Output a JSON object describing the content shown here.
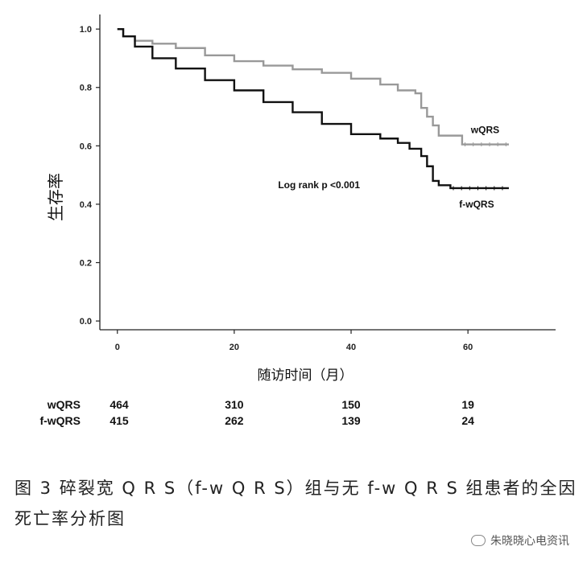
{
  "chart_data": {
    "type": "line",
    "subtype": "kaplan-meier",
    "xlabel": "随访时间（月）",
    "ylabel": "生存率",
    "xlim": [
      -3,
      75
    ],
    "ylim": [
      -0.03,
      1.05
    ],
    "x_ticks": [
      0,
      20,
      40,
      60
    ],
    "y_ticks": [
      0.0,
      0.2,
      0.4,
      0.6,
      0.8,
      1.0
    ],
    "y_tick_labels": [
      "0.0",
      "0.2",
      "0.4",
      "0.6",
      "0.8",
      "1.0"
    ],
    "grid": false,
    "annotation": "Log rank p <0.001",
    "series": [
      {
        "name": "wQRS",
        "color": "#999999",
        "points": [
          [
            0,
            1.0
          ],
          [
            1,
            0.975
          ],
          [
            3,
            0.96
          ],
          [
            6,
            0.95
          ],
          [
            10,
            0.935
          ],
          [
            15,
            0.91
          ],
          [
            20,
            0.89
          ],
          [
            25,
            0.875
          ],
          [
            30,
            0.862
          ],
          [
            35,
            0.85
          ],
          [
            40,
            0.83
          ],
          [
            45,
            0.81
          ],
          [
            48,
            0.79
          ],
          [
            51,
            0.78
          ],
          [
            52,
            0.73
          ],
          [
            53,
            0.7
          ],
          [
            54,
            0.67
          ],
          [
            55,
            0.635
          ],
          [
            58,
            0.635
          ],
          [
            59,
            0.605
          ],
          [
            67,
            0.605
          ]
        ]
      },
      {
        "name": "f-wQRS",
        "color": "#111111",
        "points": [
          [
            0,
            1.0
          ],
          [
            1,
            0.975
          ],
          [
            3,
            0.94
          ],
          [
            6,
            0.9
          ],
          [
            10,
            0.865
          ],
          [
            15,
            0.825
          ],
          [
            20,
            0.79
          ],
          [
            25,
            0.75
          ],
          [
            30,
            0.715
          ],
          [
            35,
            0.675
          ],
          [
            40,
            0.64
          ],
          [
            45,
            0.625
          ],
          [
            48,
            0.61
          ],
          [
            50,
            0.59
          ],
          [
            52,
            0.565
          ],
          [
            53,
            0.53
          ],
          [
            54,
            0.48
          ],
          [
            55,
            0.465
          ],
          [
            57,
            0.455
          ],
          [
            67,
            0.455
          ]
        ]
      }
    ],
    "risk_table": {
      "rows": [
        {
          "label": "wQRS",
          "values": [
            "464",
            "310",
            "150",
            "19"
          ]
        },
        {
          "label": "f-wQRS",
          "values": [
            "415",
            "262",
            "139",
            "24"
          ]
        }
      ]
    }
  },
  "caption": "图 3 碎裂宽 Q R S（f-w Q R S）组与无 f-w Q R S 组患者的全因死亡率分析图",
  "watermark": "朱晓晓心电资讯"
}
